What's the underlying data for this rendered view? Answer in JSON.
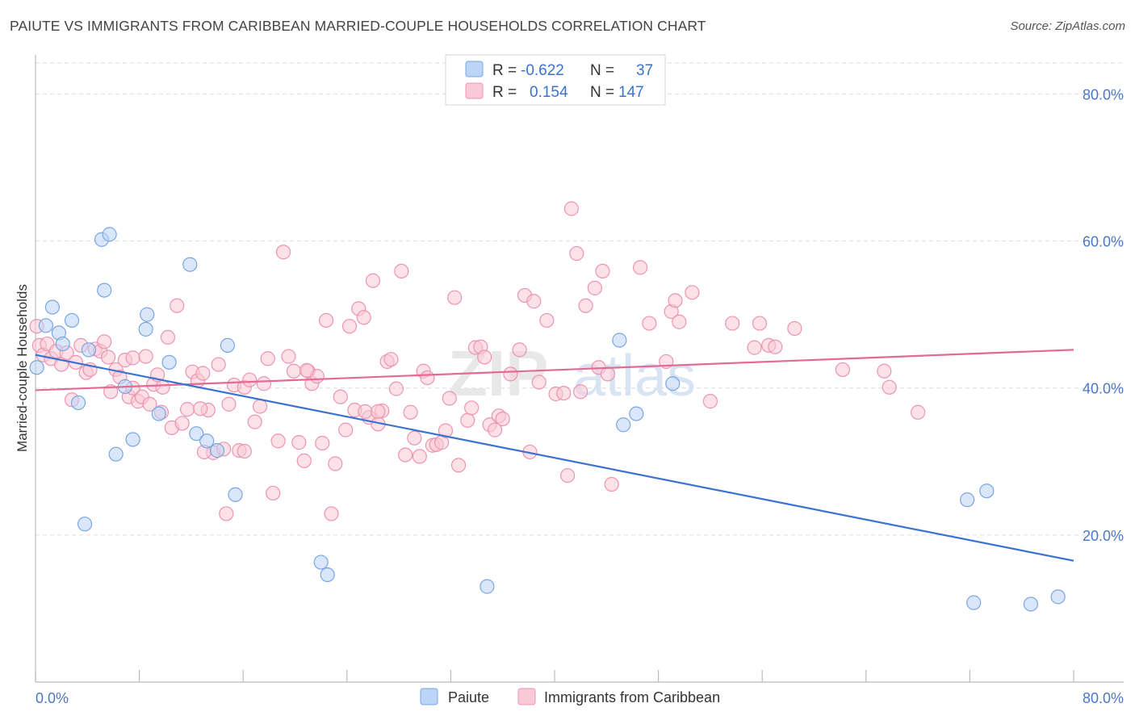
{
  "header": {
    "title": "PAIUTE VS IMMIGRANTS FROM CARIBBEAN MARRIED-COUPLE HOUSEHOLDS CORRELATION CHART",
    "source": "Source: ZipAtlas.com"
  },
  "watermark": {
    "zip": "ZIP",
    "atlas": "atlas"
  },
  "legend_box": {
    "rows": [
      {
        "r_label": "R =",
        "r_value": "-0.622",
        "n_label": "N =",
        "n_value": "37",
        "color": "#a9c8f0"
      },
      {
        "r_label": "R =",
        "r_value": "0.154",
        "n_label": "N =",
        "n_value": "147",
        "color": "#f5b8cb"
      }
    ]
  },
  "colors": {
    "paiute_fill": "#bcd4f5",
    "paiute_stroke": "#7aa6e0",
    "paiute_line": "#3a72d0",
    "carib_fill": "#f9c9d7",
    "carib_stroke": "#ec94b0",
    "carib_line": "#e46a93",
    "grid": "#dddddd",
    "tick_text": "#4a78c8"
  },
  "chart_data": {
    "type": "scatter",
    "title": "PAIUTE VS IMMIGRANTS FROM CARIBBEAN MARRIED-COUPLE HOUSEHOLDS CORRELATION CHART",
    "xlabel": "",
    "ylabel": "Married-couple Households",
    "xlim": [
      0,
      80
    ],
    "ylim": [
      0,
      84
    ],
    "x_tick_labels": [
      "0.0%",
      "80.0%"
    ],
    "y_ticks": [
      20,
      40,
      60,
      80
    ],
    "y_tick_labels": [
      "20.0%",
      "40.0%",
      "60.0%",
      "80.0%"
    ],
    "grid": true,
    "legend_position": "bottom-center",
    "series": [
      {
        "name": "Paiute",
        "R": -0.622,
        "N": 37,
        "trend": {
          "x0": 0,
          "y0": 44.5,
          "x1": 80,
          "y1": 16.5
        },
        "points": [
          [
            0.1,
            42.8
          ],
          [
            0.8,
            48.5
          ],
          [
            1.3,
            51.0
          ],
          [
            1.8,
            47.5
          ],
          [
            2.1,
            46.0
          ],
          [
            2.8,
            49.2
          ],
          [
            3.3,
            38.0
          ],
          [
            3.8,
            21.5
          ],
          [
            4.1,
            45.2
          ],
          [
            5.1,
            60.2
          ],
          [
            5.3,
            53.3
          ],
          [
            5.7,
            60.9
          ],
          [
            6.2,
            31.0
          ],
          [
            6.9,
            40.2
          ],
          [
            7.5,
            33.0
          ],
          [
            8.5,
            48.0
          ],
          [
            8.6,
            50.0
          ],
          [
            9.5,
            36.5
          ],
          [
            10.3,
            43.5
          ],
          [
            11.9,
            56.8
          ],
          [
            12.4,
            33.8
          ],
          [
            13.2,
            32.8
          ],
          [
            14.0,
            31.5
          ],
          [
            14.8,
            45.8
          ],
          [
            15.4,
            25.5
          ],
          [
            22.0,
            16.3
          ],
          [
            22.5,
            14.6
          ],
          [
            34.8,
            13.0
          ],
          [
            45.0,
            46.5
          ],
          [
            45.3,
            35.0
          ],
          [
            46.3,
            36.5
          ],
          [
            49.1,
            40.6
          ],
          [
            71.8,
            24.8
          ],
          [
            73.3,
            26.0
          ],
          [
            72.3,
            10.8
          ],
          [
            76.7,
            10.6
          ],
          [
            78.8,
            11.6
          ]
        ]
      },
      {
        "name": "Immigrants from Caribbean",
        "R": 0.154,
        "N": 147,
        "trend": {
          "x0": 0,
          "y0": 39.7,
          "x1": 80,
          "y1": 45.2
        },
        "points": [
          [
            0.1,
            48.4
          ],
          [
            0.3,
            45.8
          ],
          [
            0.6,
            44.5
          ],
          [
            0.9,
            46.0
          ],
          [
            1.2,
            44.0
          ],
          [
            1.6,
            45.0
          ],
          [
            2.0,
            43.2
          ],
          [
            2.4,
            44.8
          ],
          [
            2.8,
            38.4
          ],
          [
            3.1,
            43.5
          ],
          [
            3.5,
            45.8
          ],
          [
            3.9,
            42.1
          ],
          [
            4.2,
            42.5
          ],
          [
            4.6,
            45.3
          ],
          [
            5.0,
            45.0
          ],
          [
            5.3,
            46.3
          ],
          [
            5.6,
            44.2
          ],
          [
            5.8,
            39.5
          ],
          [
            6.2,
            42.5
          ],
          [
            6.5,
            41.5
          ],
          [
            6.9,
            43.8
          ],
          [
            7.2,
            38.8
          ],
          [
            7.5,
            44.1
          ],
          [
            7.9,
            38.2
          ],
          [
            8.2,
            38.8
          ],
          [
            8.5,
            44.3
          ],
          [
            8.8,
            37.8
          ],
          [
            9.1,
            40.5
          ],
          [
            9.4,
            41.8
          ],
          [
            9.7,
            36.7
          ],
          [
            10.2,
            46.9
          ],
          [
            10.5,
            34.6
          ],
          [
            10.9,
            51.2
          ],
          [
            11.3,
            35.2
          ],
          [
            11.7,
            37.1
          ],
          [
            12.1,
            42.2
          ],
          [
            12.5,
            41.0
          ],
          [
            12.9,
            42.0
          ],
          [
            13.3,
            37.0
          ],
          [
            13.7,
            31.2
          ],
          [
            14.1,
            43.2
          ],
          [
            14.5,
            31.7
          ],
          [
            14.9,
            37.8
          ],
          [
            15.3,
            40.4
          ],
          [
            15.7,
            31.5
          ],
          [
            16.1,
            40.1
          ],
          [
            16.5,
            41.1
          ],
          [
            16.9,
            35.4
          ],
          [
            17.3,
            37.5
          ],
          [
            17.6,
            40.6
          ],
          [
            17.9,
            44.0
          ],
          [
            18.3,
            25.7
          ],
          [
            18.7,
            32.8
          ],
          [
            19.1,
            58.5
          ],
          [
            19.5,
            44.3
          ],
          [
            19.9,
            42.3
          ],
          [
            20.3,
            32.6
          ],
          [
            20.7,
            30.1
          ],
          [
            21.0,
            42.3
          ],
          [
            21.3,
            40.6
          ],
          [
            21.7,
            41.6
          ],
          [
            22.1,
            32.5
          ],
          [
            22.4,
            49.2
          ],
          [
            22.8,
            22.9
          ],
          [
            23.1,
            29.7
          ],
          [
            23.5,
            38.8
          ],
          [
            23.9,
            34.3
          ],
          [
            24.2,
            48.4
          ],
          [
            24.6,
            37.0
          ],
          [
            24.9,
            50.8
          ],
          [
            25.3,
            49.6
          ],
          [
            25.7,
            36.0
          ],
          [
            26.0,
            54.6
          ],
          [
            26.4,
            35.1
          ],
          [
            26.7,
            36.9
          ],
          [
            27.1,
            43.6
          ],
          [
            27.4,
            43.9
          ],
          [
            27.8,
            39.9
          ],
          [
            28.2,
            55.9
          ],
          [
            28.5,
            30.9
          ],
          [
            28.9,
            36.7
          ],
          [
            29.2,
            33.2
          ],
          [
            29.6,
            30.7
          ],
          [
            29.9,
            42.3
          ],
          [
            30.2,
            41.4
          ],
          [
            30.6,
            32.2
          ],
          [
            30.9,
            32.3
          ],
          [
            31.3,
            32.6
          ],
          [
            31.6,
            34.2
          ],
          [
            31.9,
            38.6
          ],
          [
            32.3,
            52.3
          ],
          [
            32.6,
            29.5
          ],
          [
            33.3,
            35.6
          ],
          [
            33.6,
            37.3
          ],
          [
            33.9,
            45.5
          ],
          [
            34.3,
            45.6
          ],
          [
            34.6,
            44.2
          ],
          [
            35.0,
            35.0
          ],
          [
            35.7,
            36.2
          ],
          [
            36.0,
            35.8
          ],
          [
            36.6,
            41.9
          ],
          [
            37.3,
            45.2
          ],
          [
            37.7,
            52.6
          ],
          [
            38.1,
            31.3
          ],
          [
            38.4,
            51.8
          ],
          [
            38.8,
            40.8
          ],
          [
            39.4,
            49.2
          ],
          [
            40.1,
            39.2
          ],
          [
            40.7,
            39.3
          ],
          [
            41.0,
            28.1
          ],
          [
            41.3,
            64.4
          ],
          [
            41.7,
            58.3
          ],
          [
            42.0,
            39.5
          ],
          [
            42.4,
            51.2
          ],
          [
            43.1,
            53.6
          ],
          [
            43.4,
            42.8
          ],
          [
            43.7,
            55.9
          ],
          [
            44.1,
            41.9
          ],
          [
            44.4,
            26.9
          ],
          [
            46.6,
            56.4
          ],
          [
            47.3,
            48.8
          ],
          [
            48.6,
            43.6
          ],
          [
            49.0,
            50.4
          ],
          [
            49.3,
            51.9
          ],
          [
            49.6,
            49.0
          ],
          [
            50.6,
            53.0
          ],
          [
            52.0,
            38.2
          ],
          [
            53.7,
            48.8
          ],
          [
            55.4,
            45.5
          ],
          [
            55.8,
            48.8
          ],
          [
            56.5,
            45.8
          ],
          [
            57.0,
            45.6
          ],
          [
            58.5,
            48.1
          ],
          [
            62.2,
            42.5
          ],
          [
            65.4,
            42.3
          ],
          [
            65.8,
            40.1
          ],
          [
            68.0,
            36.7
          ],
          [
            16.1,
            31.4
          ],
          [
            12.7,
            37.2
          ],
          [
            14.7,
            22.9
          ],
          [
            20.9,
            42.4
          ],
          [
            13.0,
            31.3
          ],
          [
            25.4,
            36.8
          ],
          [
            9.8,
            40.1
          ],
          [
            26.4,
            36.8
          ],
          [
            35.4,
            34.3
          ],
          [
            7.5,
            40.0
          ]
        ]
      }
    ]
  }
}
